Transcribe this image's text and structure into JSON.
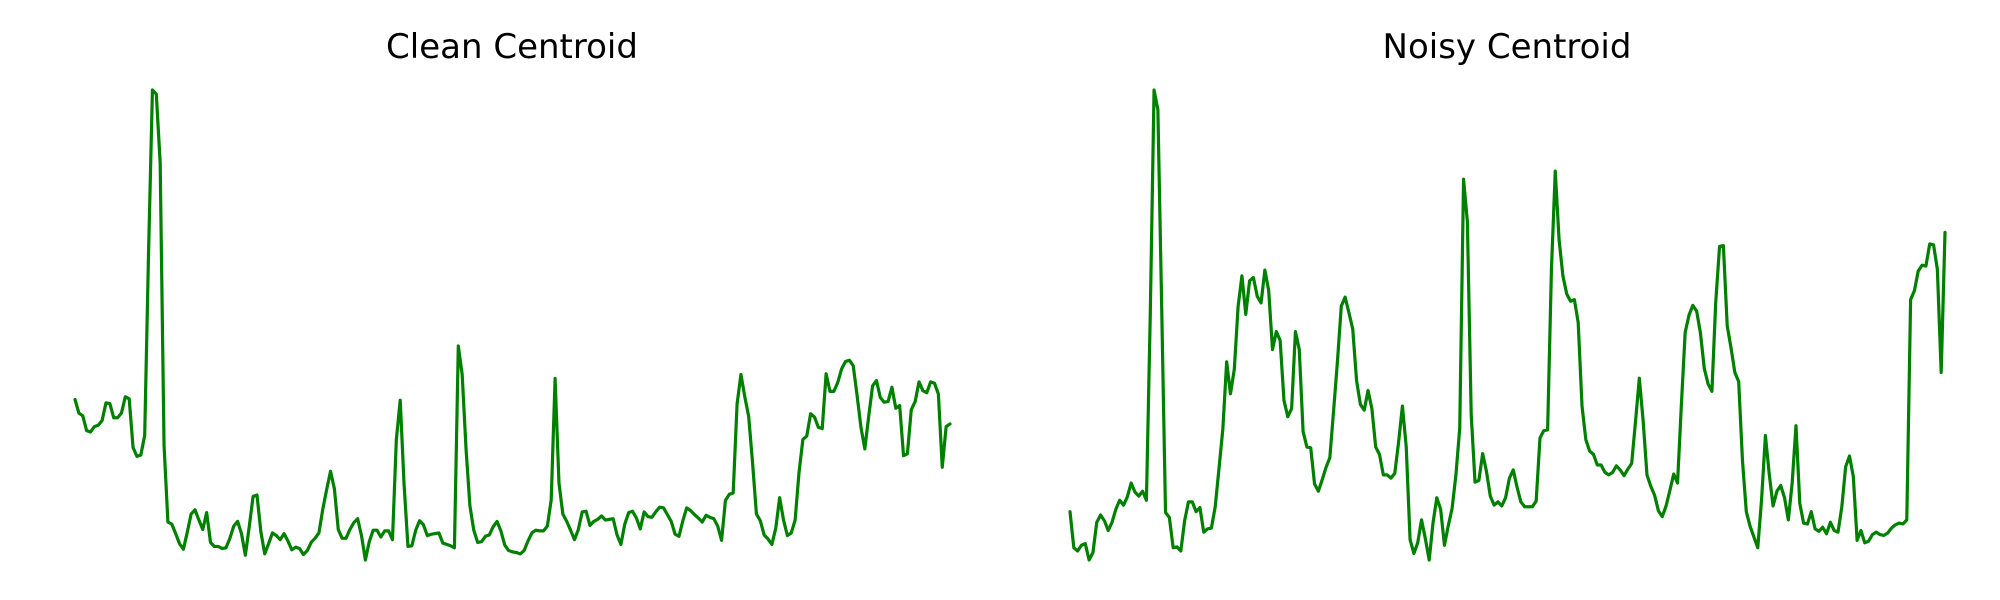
{
  "chart_data": [
    {
      "type": "line",
      "title": "Clean Centroid",
      "xlabel": "",
      "ylabel": "",
      "grid": false,
      "axes_visible": false,
      "series": [
        {
          "color": "#008000",
          "values": [
            0.463,
            0.443,
            0.439,
            0.417,
            0.415,
            0.423,
            0.425,
            0.432,
            0.458,
            0.457,
            0.436,
            0.436,
            0.443,
            0.467,
            0.464,
            0.392,
            0.379,
            0.381,
            0.41,
            0.68,
            0.92,
            0.914,
            0.812,
            0.395,
            0.282,
            0.279,
            0.265,
            0.25,
            0.242,
            0.267,
            0.294,
            0.3,
            0.285,
            0.271,
            0.296,
            0.252,
            0.246,
            0.246,
            0.243,
            0.244,
            0.258,
            0.276,
            0.283,
            0.265,
            0.233,
            0.275,
            0.32,
            0.322,
            0.268,
            0.235,
            0.25,
            0.266,
            0.262,
            0.256,
            0.265,
            0.254,
            0.241,
            0.245,
            0.243,
            0.234,
            0.24,
            0.252,
            0.258,
            0.266,
            0.301,
            0.33,
            0.357,
            0.331,
            0.271,
            0.258,
            0.258,
            0.271,
            0.281,
            0.287,
            0.262,
            0.226,
            0.253,
            0.27,
            0.27,
            0.26,
            0.269,
            0.269,
            0.256,
            0.404,
            0.462,
            0.337,
            0.246,
            0.247,
            0.27,
            0.284,
            0.278,
            0.262,
            0.264,
            0.265,
            0.266,
            0.251,
            0.249,
            0.247,
            0.244,
            0.542,
            0.5,
            0.39,
            0.306,
            0.27,
            0.252,
            0.253,
            0.261,
            0.263,
            0.275,
            0.283,
            0.269,
            0.248,
            0.24,
            0.238,
            0.237,
            0.235,
            0.24,
            0.254,
            0.266,
            0.27,
            0.269,
            0.269,
            0.276,
            0.315,
            0.494,
            0.34,
            0.294,
            0.283,
            0.27,
            0.256,
            0.271,
            0.297,
            0.298,
            0.277,
            0.283,
            0.286,
            0.291,
            0.285,
            0.286,
            0.287,
            0.263,
            0.249,
            0.279,
            0.296,
            0.298,
            0.288,
            0.272,
            0.297,
            0.29,
            0.289,
            0.297,
            0.304,
            0.303,
            0.293,
            0.283,
            0.264,
            0.261,
            0.284,
            0.303,
            0.299,
            0.293,
            0.288,
            0.282,
            0.292,
            0.289,
            0.287,
            0.276,
            0.255,
            0.314,
            0.323,
            0.325,
            0.456,
            0.5,
            0.467,
            0.438,
            0.37,
            0.294,
            0.284,
            0.263,
            0.257,
            0.249,
            0.273,
            0.318,
            0.285,
            0.262,
            0.266,
            0.285,
            0.355,
            0.404,
            0.409,
            0.442,
            0.437,
            0.422,
            0.42,
            0.501,
            0.475,
            0.475,
            0.488,
            0.508,
            0.519,
            0.521,
            0.513,
            0.469,
            0.422,
            0.39,
            0.438,
            0.483,
            0.491,
            0.466,
            0.459,
            0.46,
            0.481,
            0.45,
            0.454,
            0.38,
            0.383,
            0.448,
            0.46,
            0.489,
            0.476,
            0.473,
            0.489,
            0.487,
            0.471,
            0.363,
            0.423,
            0.427
          ]
        }
      ]
    },
    {
      "type": "line",
      "title": "Noisy Centroid",
      "xlabel": "",
      "ylabel": "",
      "grid": false,
      "axes_visible": false,
      "series": [
        {
          "color": "#008000",
          "values": [
            0.324,
            0.28,
            0.276,
            0.283,
            0.285,
            0.265,
            0.274,
            0.311,
            0.32,
            0.313,
            0.301,
            0.311,
            0.327,
            0.338,
            0.332,
            0.342,
            0.359,
            0.348,
            0.343,
            0.349,
            0.338,
            0.563,
            0.839,
            0.815,
            0.573,
            0.323,
            0.317,
            0.28,
            0.281,
            0.276,
            0.313,
            0.336,
            0.336,
            0.324,
            0.329,
            0.299,
            0.303,
            0.304,
            0.33,
            0.377,
            0.425,
            0.507,
            0.468,
            0.498,
            0.575,
            0.612,
            0.565,
            0.606,
            0.61,
            0.587,
            0.579,
            0.619,
            0.594,
            0.522,
            0.544,
            0.533,
            0.46,
            0.44,
            0.45,
            0.544,
            0.522,
            0.422,
            0.403,
            0.402,
            0.358,
            0.349,
            0.363,
            0.378,
            0.39,
            0.448,
            0.508,
            0.575,
            0.586,
            0.567,
            0.547,
            0.484,
            0.455,
            0.448,
            0.472,
            0.45,
            0.403,
            0.394,
            0.369,
            0.369,
            0.365,
            0.371,
            0.409,
            0.453,
            0.403,
            0.29,
            0.273,
            0.286,
            0.314,
            0.291,
            0.265,
            0.31,
            0.341,
            0.327,
            0.283,
            0.307,
            0.328,
            0.369,
            0.426,
            0.73,
            0.678,
            0.443,
            0.36,
            0.362,
            0.395,
            0.373,
            0.343,
            0.332,
            0.336,
            0.331,
            0.341,
            0.365,
            0.375,
            0.354,
            0.336,
            0.33,
            0.33,
            0.33,
            0.337,
            0.414,
            0.423,
            0.424,
            0.62,
            0.74,
            0.656,
            0.612,
            0.59,
            0.581,
            0.583,
            0.555,
            0.453,
            0.412,
            0.398,
            0.394,
            0.381,
            0.381,
            0.372,
            0.369,
            0.372,
            0.38,
            0.375,
            0.368,
            0.376,
            0.383,
            0.434,
            0.487,
            0.435,
            0.369,
            0.355,
            0.344,
            0.325,
            0.318,
            0.331,
            0.35,
            0.37,
            0.359,
            0.454,
            0.543,
            0.564,
            0.576,
            0.569,
            0.542,
            0.499,
            0.48,
            0.471,
            0.58,
            0.648,
            0.649,
            0.551,
            0.524,
            0.494,
            0.483,
            0.386,
            0.324,
            0.306,
            0.293,
            0.28,
            0.339,
            0.417,
            0.37,
            0.331,
            0.349,
            0.356,
            0.341,
            0.314,
            0.359,
            0.429,
            0.334,
            0.31,
            0.309,
            0.324,
            0.303,
            0.3,
            0.305,
            0.297,
            0.311,
            0.301,
            0.299,
            0.33,
            0.379,
            0.392,
            0.367,
            0.289,
            0.301,
            0.286,
            0.288,
            0.296,
            0.299,
            0.296,
            0.295,
            0.298,
            0.304,
            0.308,
            0.31,
            0.309,
            0.314,
            0.583,
            0.594,
            0.618,
            0.625,
            0.624,
            0.651,
            0.65,
            0.62,
            0.494,
            0.665
          ]
        }
      ]
    }
  ]
}
